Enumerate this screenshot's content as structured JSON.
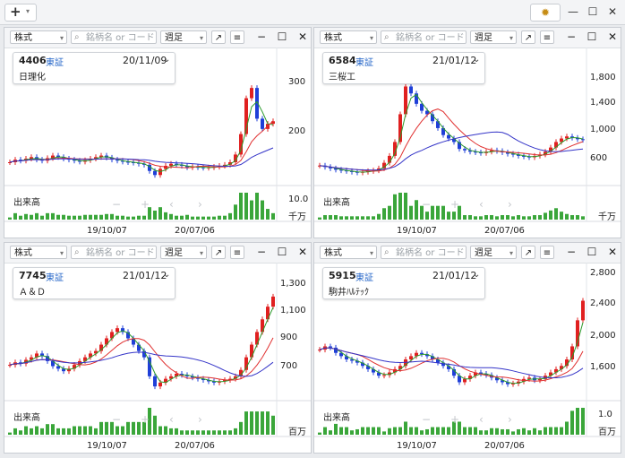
{
  "toolbar": {
    "add_label": "+",
    "settings_icon": "sun-gear-icon"
  },
  "window_controls": {
    "minimize": "—",
    "maximize": "☐",
    "close": "✕"
  },
  "common": {
    "market_select": "株式",
    "search_placeholder": "銘柄名 or コード",
    "period_select": "週足",
    "volume_label": "出来高"
  },
  "panels": [
    {
      "code": "4406",
      "exchange": "東証",
      "date": "20/11/09",
      "name": "日理化",
      "yticks": [
        "300",
        "200"
      ],
      "vol_unit": "千万",
      "vol_tick": "10.0",
      "xticks": [
        "19/10/07",
        "20/07/06"
      ],
      "chart_data": {
        "type": "candlestick",
        "ylim": [
          140,
          350
        ],
        "y": [
          175,
          180,
          178,
          182,
          185,
          180,
          178,
          183,
          188,
          185,
          182,
          180,
          178,
          176,
          179,
          182,
          185,
          188,
          184,
          180,
          178,
          176,
          175,
          174,
          172,
          170,
          158,
          150,
          162,
          168,
          172,
          170,
          168,
          165,
          166,
          165,
          164,
          165,
          166,
          168,
          170,
          175,
          190,
          230,
          300,
          320,
          260,
          240,
          250,
          255
        ]
      }
    },
    {
      "code": "6584",
      "exchange": "東証",
      "date": "21/01/12",
      "name": "三桜工",
      "yticks": [
        "1,800",
        "1,400",
        "1,000",
        "600"
      ],
      "vol_unit": "千万",
      "vol_tick": "",
      "xticks": [
        "19/10/07",
        "20/07/06"
      ],
      "chart_data": {
        "type": "candlestick",
        "ylim": [
          350,
          1900
        ],
        "y": [
          560,
          540,
          520,
          500,
          490,
          480,
          470,
          460,
          470,
          480,
          490,
          520,
          600,
          700,
          900,
          1300,
          1700,
          1600,
          1450,
          1350,
          1300,
          1200,
          1100,
          1000,
          950,
          900,
          800,
          780,
          760,
          750,
          740,
          760,
          780,
          770,
          750,
          730,
          720,
          700,
          690,
          680,
          700,
          720,
          760,
          820,
          900,
          950,
          980,
          960,
          940,
          930
        ]
      }
    },
    {
      "code": "7745",
      "exchange": "東証",
      "date": "21/01/12",
      "name": "Ａ＆Ｄ",
      "yticks": [
        "1,300",
        "1,100",
        "900",
        "700"
      ],
      "vol_unit": "百万",
      "vol_tick": "",
      "xticks": [
        "19/10/07",
        "20/07/06"
      ],
      "chart_data": {
        "type": "candlestick",
        "ylim": [
          550,
          1400
        ],
        "y": [
          790,
          810,
          800,
          830,
          850,
          880,
          860,
          820,
          780,
          760,
          740,
          760,
          790,
          820,
          850,
          880,
          900,
          950,
          1000,
          1050,
          1080,
          1050,
          1000,
          950,
          900,
          850,
          700,
          620,
          650,
          680,
          700,
          720,
          710,
          700,
          690,
          680,
          670,
          660,
          650,
          660,
          670,
          680,
          700,
          750,
          850,
          950,
          1050,
          1150,
          1250,
          1330
        ]
      }
    },
    {
      "code": "5915",
      "exchange": "東証",
      "date": "21/01/12",
      "name": "駒井ﾊﾙﾃｯｸ",
      "yticks": [
        "2,800",
        "2,400",
        "2,000",
        "1,600"
      ],
      "vol_unit": "百万",
      "vol_tick": "1.0",
      "xticks": [
        "19/10/07",
        "20/07/06"
      ],
      "chart_data": {
        "type": "candlestick",
        "ylim": [
          1250,
          2900
        ],
        "y": [
          1950,
          2000,
          1980,
          1900,
          1850,
          1800,
          1780,
          1750,
          1700,
          1650,
          1600,
          1550,
          1560,
          1600,
          1650,
          1700,
          1800,
          1850,
          1900,
          1880,
          1850,
          1800,
          1750,
          1700,
          1650,
          1550,
          1450,
          1500,
          1550,
          1600,
          1580,
          1560,
          1520,
          1480,
          1450,
          1420,
          1430,
          1460,
          1500,
          1520,
          1480,
          1500,
          1550,
          1600,
          1650,
          1700,
          1800,
          2000,
          2400,
          2700
        ]
      }
    }
  ],
  "colors": {
    "up": "#e02020",
    "down": "#1f3fd8",
    "ma_short": "#2a9a2a",
    "ma_mid": "#e03030",
    "ma_long": "#3535c8",
    "volume": "#3aa63a"
  }
}
